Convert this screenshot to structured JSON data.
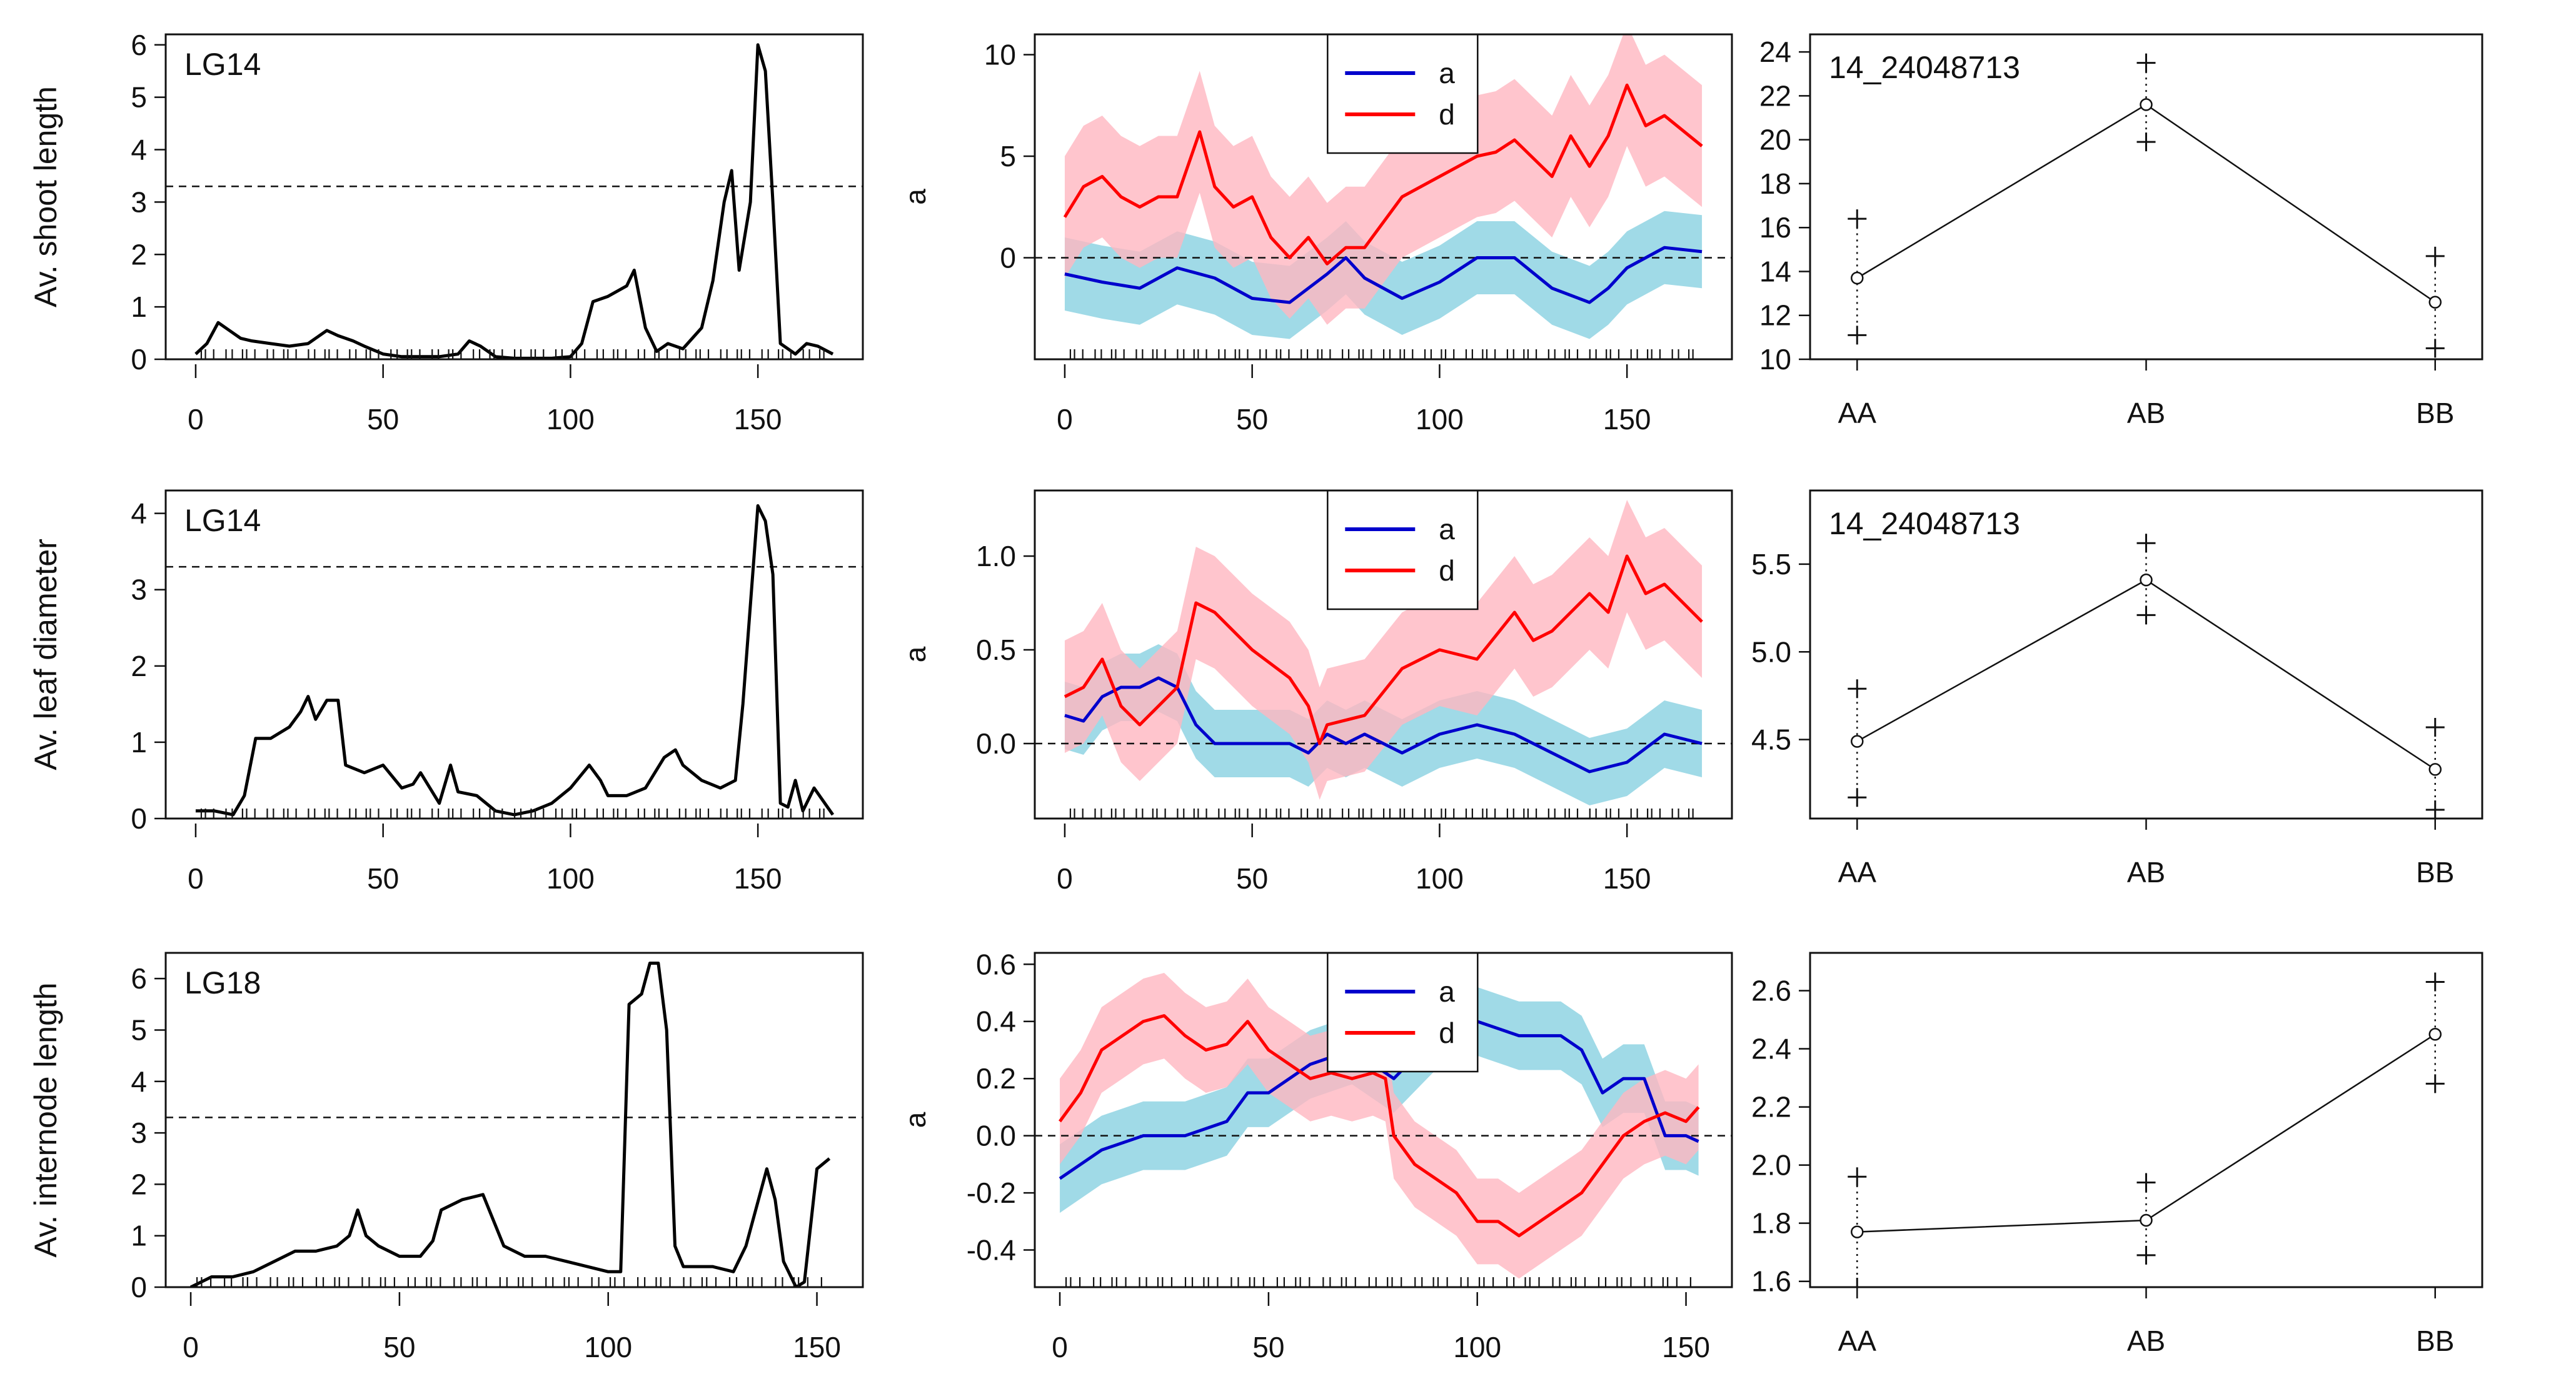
{
  "figure": {
    "layout": "3 rows x 3 columns of QTL plots",
    "colors": {
      "line": "#000000",
      "a_line": "#0000cc",
      "d_line": "#ff0000",
      "a_band": "#8fd3e3",
      "d_band": "#ffb6c1"
    }
  },
  "chart_data": [
    {
      "type": "line",
      "panel": "row1-lod",
      "title": "",
      "label": "LG14",
      "ylabel": "Av. shoot length",
      "xlabel": "",
      "xlim": [
        -8,
        178
      ],
      "ylim": [
        0,
        6.2
      ],
      "xticks": [
        0,
        50,
        100,
        150
      ],
      "yticks": [
        0,
        1,
        2,
        3,
        4,
        5,
        6
      ],
      "threshold": 3.3,
      "series": [
        {
          "name": "LOD",
          "x": [
            0,
            3,
            6,
            9,
            12,
            15,
            20,
            25,
            30,
            35,
            38,
            42,
            45,
            50,
            55,
            60,
            65,
            70,
            73,
            76,
            80,
            85,
            90,
            95,
            100,
            103,
            106,
            110,
            115,
            117,
            120,
            123,
            126,
            130,
            135,
            138,
            141,
            143,
            145,
            148,
            150,
            152,
            154,
            156,
            158,
            160,
            163,
            166,
            170
          ],
          "values": [
            0.1,
            0.3,
            0.7,
            0.55,
            0.4,
            0.35,
            0.3,
            0.25,
            0.3,
            0.55,
            0.45,
            0.35,
            0.25,
            0.1,
            0.05,
            0.05,
            0.05,
            0.1,
            0.35,
            0.25,
            0.05,
            0.02,
            0.02,
            0.02,
            0.05,
            0.3,
            1.1,
            1.2,
            1.4,
            1.7,
            0.6,
            0.15,
            0.3,
            0.2,
            0.6,
            1.5,
            3.0,
            3.6,
            1.7,
            3.0,
            6.0,
            5.5,
            3.0,
            0.3,
            0.2,
            0.1,
            0.3,
            0.25,
            0.1
          ]
        }
      ]
    },
    {
      "type": "line",
      "panel": "row1-effects",
      "ylabel": "a",
      "xlabel": "",
      "xlim": [
        -8,
        178
      ],
      "ylim": [
        -5,
        11
      ],
      "xticks": [
        0,
        50,
        100,
        150
      ],
      "yticks": [
        0,
        5,
        10
      ],
      "threshold": 0,
      "legend": [
        "a",
        "d"
      ],
      "series": [
        {
          "name": "a",
          "x": [
            0,
            10,
            20,
            30,
            40,
            50,
            60,
            70,
            75,
            80,
            90,
            100,
            110,
            120,
            130,
            140,
            145,
            150,
            160,
            170
          ],
          "values": [
            -0.8,
            -1.2,
            -1.5,
            -0.5,
            -1.0,
            -2.0,
            -2.2,
            -0.8,
            0.0,
            -1.0,
            -2.0,
            -1.2,
            0.0,
            0.0,
            -1.5,
            -2.2,
            -1.5,
            -0.5,
            0.5,
            0.3
          ],
          "band": 1.8
        },
        {
          "name": "d",
          "x": [
            0,
            5,
            10,
            15,
            20,
            25,
            30,
            36,
            40,
            45,
            50,
            55,
            60,
            65,
            70,
            75,
            80,
            90,
            100,
            110,
            115,
            120,
            130,
            135,
            140,
            145,
            150,
            155,
            160,
            170
          ],
          "values": [
            2.0,
            3.5,
            4.0,
            3.0,
            2.5,
            3.0,
            3.0,
            6.2,
            3.5,
            2.5,
            3.0,
            1.0,
            0.0,
            1.0,
            -0.3,
            0.5,
            0.5,
            3.0,
            4.0,
            5.0,
            5.2,
            5.8,
            4.0,
            6.0,
            4.5,
            6.0,
            8.5,
            6.5,
            7.0,
            5.5
          ],
          "band": 3.0
        }
      ]
    },
    {
      "type": "scatter",
      "panel": "row1-genotype",
      "label": "14_24048713",
      "xlabel": "",
      "ylabel": "",
      "categories": [
        "AA",
        "AB",
        "BB"
      ],
      "ylim": [
        10,
        24.8
      ],
      "yticks": [
        10,
        12,
        14,
        16,
        18,
        20,
        22,
        24
      ],
      "means": [
        13.7,
        21.6,
        12.6
      ],
      "lower": [
        11.1,
        19.9,
        10.5
      ],
      "upper": [
        16.4,
        23.5,
        14.7
      ]
    },
    {
      "type": "line",
      "panel": "row2-lod",
      "label": "LG14",
      "ylabel": "Av. leaf diameter",
      "xlabel": "",
      "xlim": [
        -8,
        178
      ],
      "ylim": [
        0,
        4.3
      ],
      "xticks": [
        0,
        50,
        100,
        150
      ],
      "yticks": [
        0,
        1,
        2,
        3,
        4
      ],
      "threshold": 3.3,
      "series": [
        {
          "name": "LOD",
          "x": [
            0,
            5,
            10,
            13,
            16,
            20,
            25,
            28,
            30,
            32,
            35,
            38,
            40,
            45,
            50,
            55,
            58,
            60,
            65,
            68,
            70,
            75,
            80,
            85,
            90,
            95,
            100,
            105,
            108,
            110,
            115,
            120,
            125,
            128,
            130,
            135,
            140,
            144,
            146,
            148,
            150,
            152,
            154,
            156,
            158,
            160,
            162,
            165,
            170
          ],
          "values": [
            0.1,
            0.1,
            0.05,
            0.3,
            1.05,
            1.05,
            1.2,
            1.4,
            1.6,
            1.3,
            1.55,
            1.55,
            0.7,
            0.6,
            0.7,
            0.4,
            0.45,
            0.6,
            0.2,
            0.7,
            0.35,
            0.3,
            0.1,
            0.05,
            0.1,
            0.2,
            0.4,
            0.7,
            0.5,
            0.3,
            0.3,
            0.4,
            0.8,
            0.9,
            0.7,
            0.5,
            0.4,
            0.5,
            1.5,
            2.8,
            4.1,
            3.9,
            3.2,
            0.2,
            0.15,
            0.5,
            0.1,
            0.4,
            0.05
          ]
        }
      ]
    },
    {
      "type": "line",
      "panel": "row2-effects",
      "ylabel": "a",
      "xlabel": "",
      "xlim": [
        -8,
        178
      ],
      "ylim": [
        -0.4,
        1.35
      ],
      "xticks": [
        0,
        50,
        100,
        150
      ],
      "yticks": [
        0.0,
        0.5,
        1.0
      ],
      "threshold": 0,
      "legend": [
        "a",
        "d"
      ],
      "series": [
        {
          "name": "a",
          "x": [
            0,
            5,
            10,
            15,
            20,
            25,
            30,
            35,
            40,
            50,
            60,
            65,
            70,
            75,
            80,
            90,
            100,
            110,
            120,
            130,
            140,
            150,
            160,
            170
          ],
          "values": [
            0.15,
            0.12,
            0.25,
            0.3,
            0.3,
            0.35,
            0.3,
            0.1,
            0.0,
            0.0,
            0.0,
            -0.05,
            0.05,
            0.0,
            0.05,
            -0.05,
            0.05,
            0.1,
            0.05,
            -0.05,
            -0.15,
            -0.1,
            0.05,
            0.0
          ],
          "band": 0.18
        },
        {
          "name": "d",
          "x": [
            0,
            5,
            10,
            15,
            20,
            25,
            30,
            35,
            40,
            50,
            60,
            65,
            68,
            70,
            80,
            90,
            100,
            110,
            120,
            125,
            130,
            140,
            145,
            150,
            155,
            160,
            170
          ],
          "values": [
            0.25,
            0.3,
            0.45,
            0.2,
            0.1,
            0.2,
            0.3,
            0.75,
            0.7,
            0.5,
            0.35,
            0.2,
            0.0,
            0.1,
            0.15,
            0.4,
            0.5,
            0.45,
            0.7,
            0.55,
            0.6,
            0.8,
            0.7,
            1.0,
            0.8,
            0.85,
            0.65
          ],
          "band": 0.3
        }
      ]
    },
    {
      "type": "scatter",
      "panel": "row2-genotype",
      "label": "14_24048713",
      "xlabel": "",
      "ylabel": "",
      "categories": [
        "AA",
        "AB",
        "BB"
      ],
      "ylim": [
        4.05,
        5.92
      ],
      "yticks": [
        4.5,
        5.0,
        5.5
      ],
      "means": [
        4.49,
        5.41,
        4.33
      ],
      "lower": [
        4.17,
        5.21,
        4.1
      ],
      "upper": [
        4.79,
        5.62,
        4.57
      ]
    },
    {
      "type": "line",
      "panel": "row3-lod",
      "label": "LG18",
      "ylabel": "Av. internode length",
      "xlabel": "",
      "xlim": [
        -6,
        161
      ],
      "ylim": [
        0,
        6.5
      ],
      "xticks": [
        0,
        50,
        100,
        150
      ],
      "yticks": [
        0,
        1,
        2,
        3,
        4,
        5,
        6
      ],
      "threshold": 3.3,
      "series": [
        {
          "name": "LOD",
          "x": [
            0,
            5,
            10,
            15,
            20,
            25,
            28,
            30,
            35,
            38,
            40,
            42,
            45,
            50,
            55,
            58,
            60,
            65,
            70,
            72,
            75,
            80,
            85,
            90,
            95,
            100,
            103,
            105,
            108,
            110,
            112,
            114,
            116,
            118,
            120,
            125,
            130,
            133,
            135,
            138,
            140,
            142,
            145,
            147,
            150,
            153
          ],
          "values": [
            0,
            0.2,
            0.2,
            0.3,
            0.5,
            0.7,
            0.7,
            0.7,
            0.8,
            1.0,
            1.5,
            1.0,
            0.8,
            0.6,
            0.6,
            0.9,
            1.5,
            1.7,
            1.8,
            1.4,
            0.8,
            0.6,
            0.6,
            0.5,
            0.4,
            0.3,
            0.3,
            5.5,
            5.7,
            6.3,
            6.3,
            5.0,
            0.8,
            0.4,
            0.4,
            0.4,
            0.3,
            0.8,
            1.4,
            2.3,
            1.7,
            0.5,
            0.0,
            0.1,
            2.3,
            2.5
          ]
        }
      ]
    },
    {
      "type": "line",
      "panel": "row3-effects",
      "ylabel": "a",
      "xlabel": "",
      "xlim": [
        -6,
        161
      ],
      "ylim": [
        -0.53,
        0.64
      ],
      "xticks": [
        0,
        50,
        100,
        150
      ],
      "yticks": [
        -0.4,
        -0.2,
        0.0,
        0.2,
        0.4,
        0.6
      ],
      "threshold": 0,
      "legend": [
        "a",
        "d"
      ],
      "series": [
        {
          "name": "a",
          "x": [
            0,
            10,
            20,
            30,
            40,
            45,
            50,
            60,
            70,
            80,
            90,
            95,
            100,
            110,
            120,
            125,
            130,
            135,
            140,
            145,
            150,
            153
          ],
          "values": [
            -0.15,
            -0.05,
            0.0,
            0.0,
            0.05,
            0.15,
            0.15,
            0.25,
            0.3,
            0.2,
            0.35,
            0.4,
            0.4,
            0.35,
            0.35,
            0.3,
            0.15,
            0.2,
            0.2,
            0.0,
            0.0,
            -0.02
          ],
          "band": 0.12
        },
        {
          "name": "d",
          "x": [
            0,
            5,
            10,
            15,
            20,
            25,
            30,
            35,
            40,
            45,
            50,
            55,
            60,
            65,
            70,
            75,
            78,
            80,
            85,
            90,
            95,
            100,
            105,
            110,
            115,
            120,
            125,
            130,
            135,
            140,
            145,
            150,
            153
          ],
          "values": [
            0.05,
            0.15,
            0.3,
            0.35,
            0.4,
            0.42,
            0.35,
            0.3,
            0.32,
            0.4,
            0.3,
            0.25,
            0.2,
            0.22,
            0.2,
            0.22,
            0.2,
            0.0,
            -0.1,
            -0.15,
            -0.2,
            -0.3,
            -0.3,
            -0.35,
            -0.3,
            -0.25,
            -0.2,
            -0.1,
            0.0,
            0.05,
            0.08,
            0.05,
            0.1
          ],
          "band": 0.15
        }
      ]
    },
    {
      "type": "scatter",
      "panel": "row3-genotype",
      "label": "",
      "xlabel": "",
      "ylabel": "",
      "categories": [
        "AA",
        "AB",
        "BB"
      ],
      "ylim": [
        1.58,
        2.73
      ],
      "yticks": [
        1.6,
        1.8,
        2.0,
        2.2,
        2.4,
        2.6
      ],
      "means": [
        1.77,
        1.81,
        2.45
      ],
      "lower": [
        1.58,
        1.69,
        2.28
      ],
      "upper": [
        1.96,
        1.94,
        2.63
      ]
    }
  ]
}
